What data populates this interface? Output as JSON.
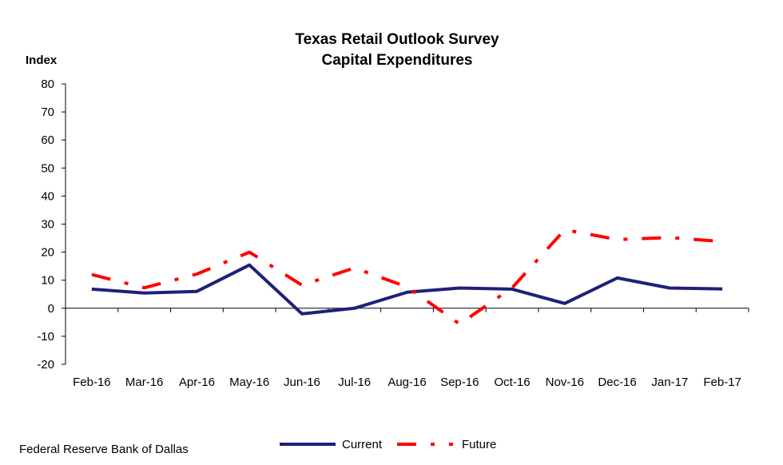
{
  "chart_data": {
    "type": "line",
    "title": "Texas Retail Outlook Survey",
    "subtitle": "Capital Expenditures",
    "ylabel": "Index",
    "xlabel": "",
    "ylim": [
      -20,
      80
    ],
    "yticks": [
      -20,
      -10,
      0,
      10,
      20,
      30,
      40,
      50,
      60,
      70,
      80
    ],
    "categories": [
      "Feb-16",
      "Mar-16",
      "Apr-16",
      "May-16",
      "Jun-16",
      "Jul-16",
      "Aug-16",
      "Sep-16",
      "Oct-16",
      "Nov-16",
      "Dec-16",
      "Jan-17",
      "Feb-17"
    ],
    "series": [
      {
        "name": "Current",
        "color": "#1f1f7a",
        "style": "solid",
        "values": [
          6.8,
          5.4,
          6.0,
          15.4,
          -2.0,
          0.0,
          5.7,
          7.2,
          6.8,
          1.7,
          10.8,
          7.2,
          6.9
        ]
      },
      {
        "name": "Future",
        "color": "#ff0000",
        "style": "dash-dot",
        "values": [
          12.0,
          7.3,
          12.2,
          20.0,
          8.2,
          14.4,
          7.6,
          -5.6,
          7.3,
          28.0,
          24.5,
          25.2,
          23.8
        ]
      }
    ],
    "grid": false,
    "legend_position": "bottom"
  },
  "footer": {
    "source": "Federal Reserve Bank of Dallas"
  }
}
